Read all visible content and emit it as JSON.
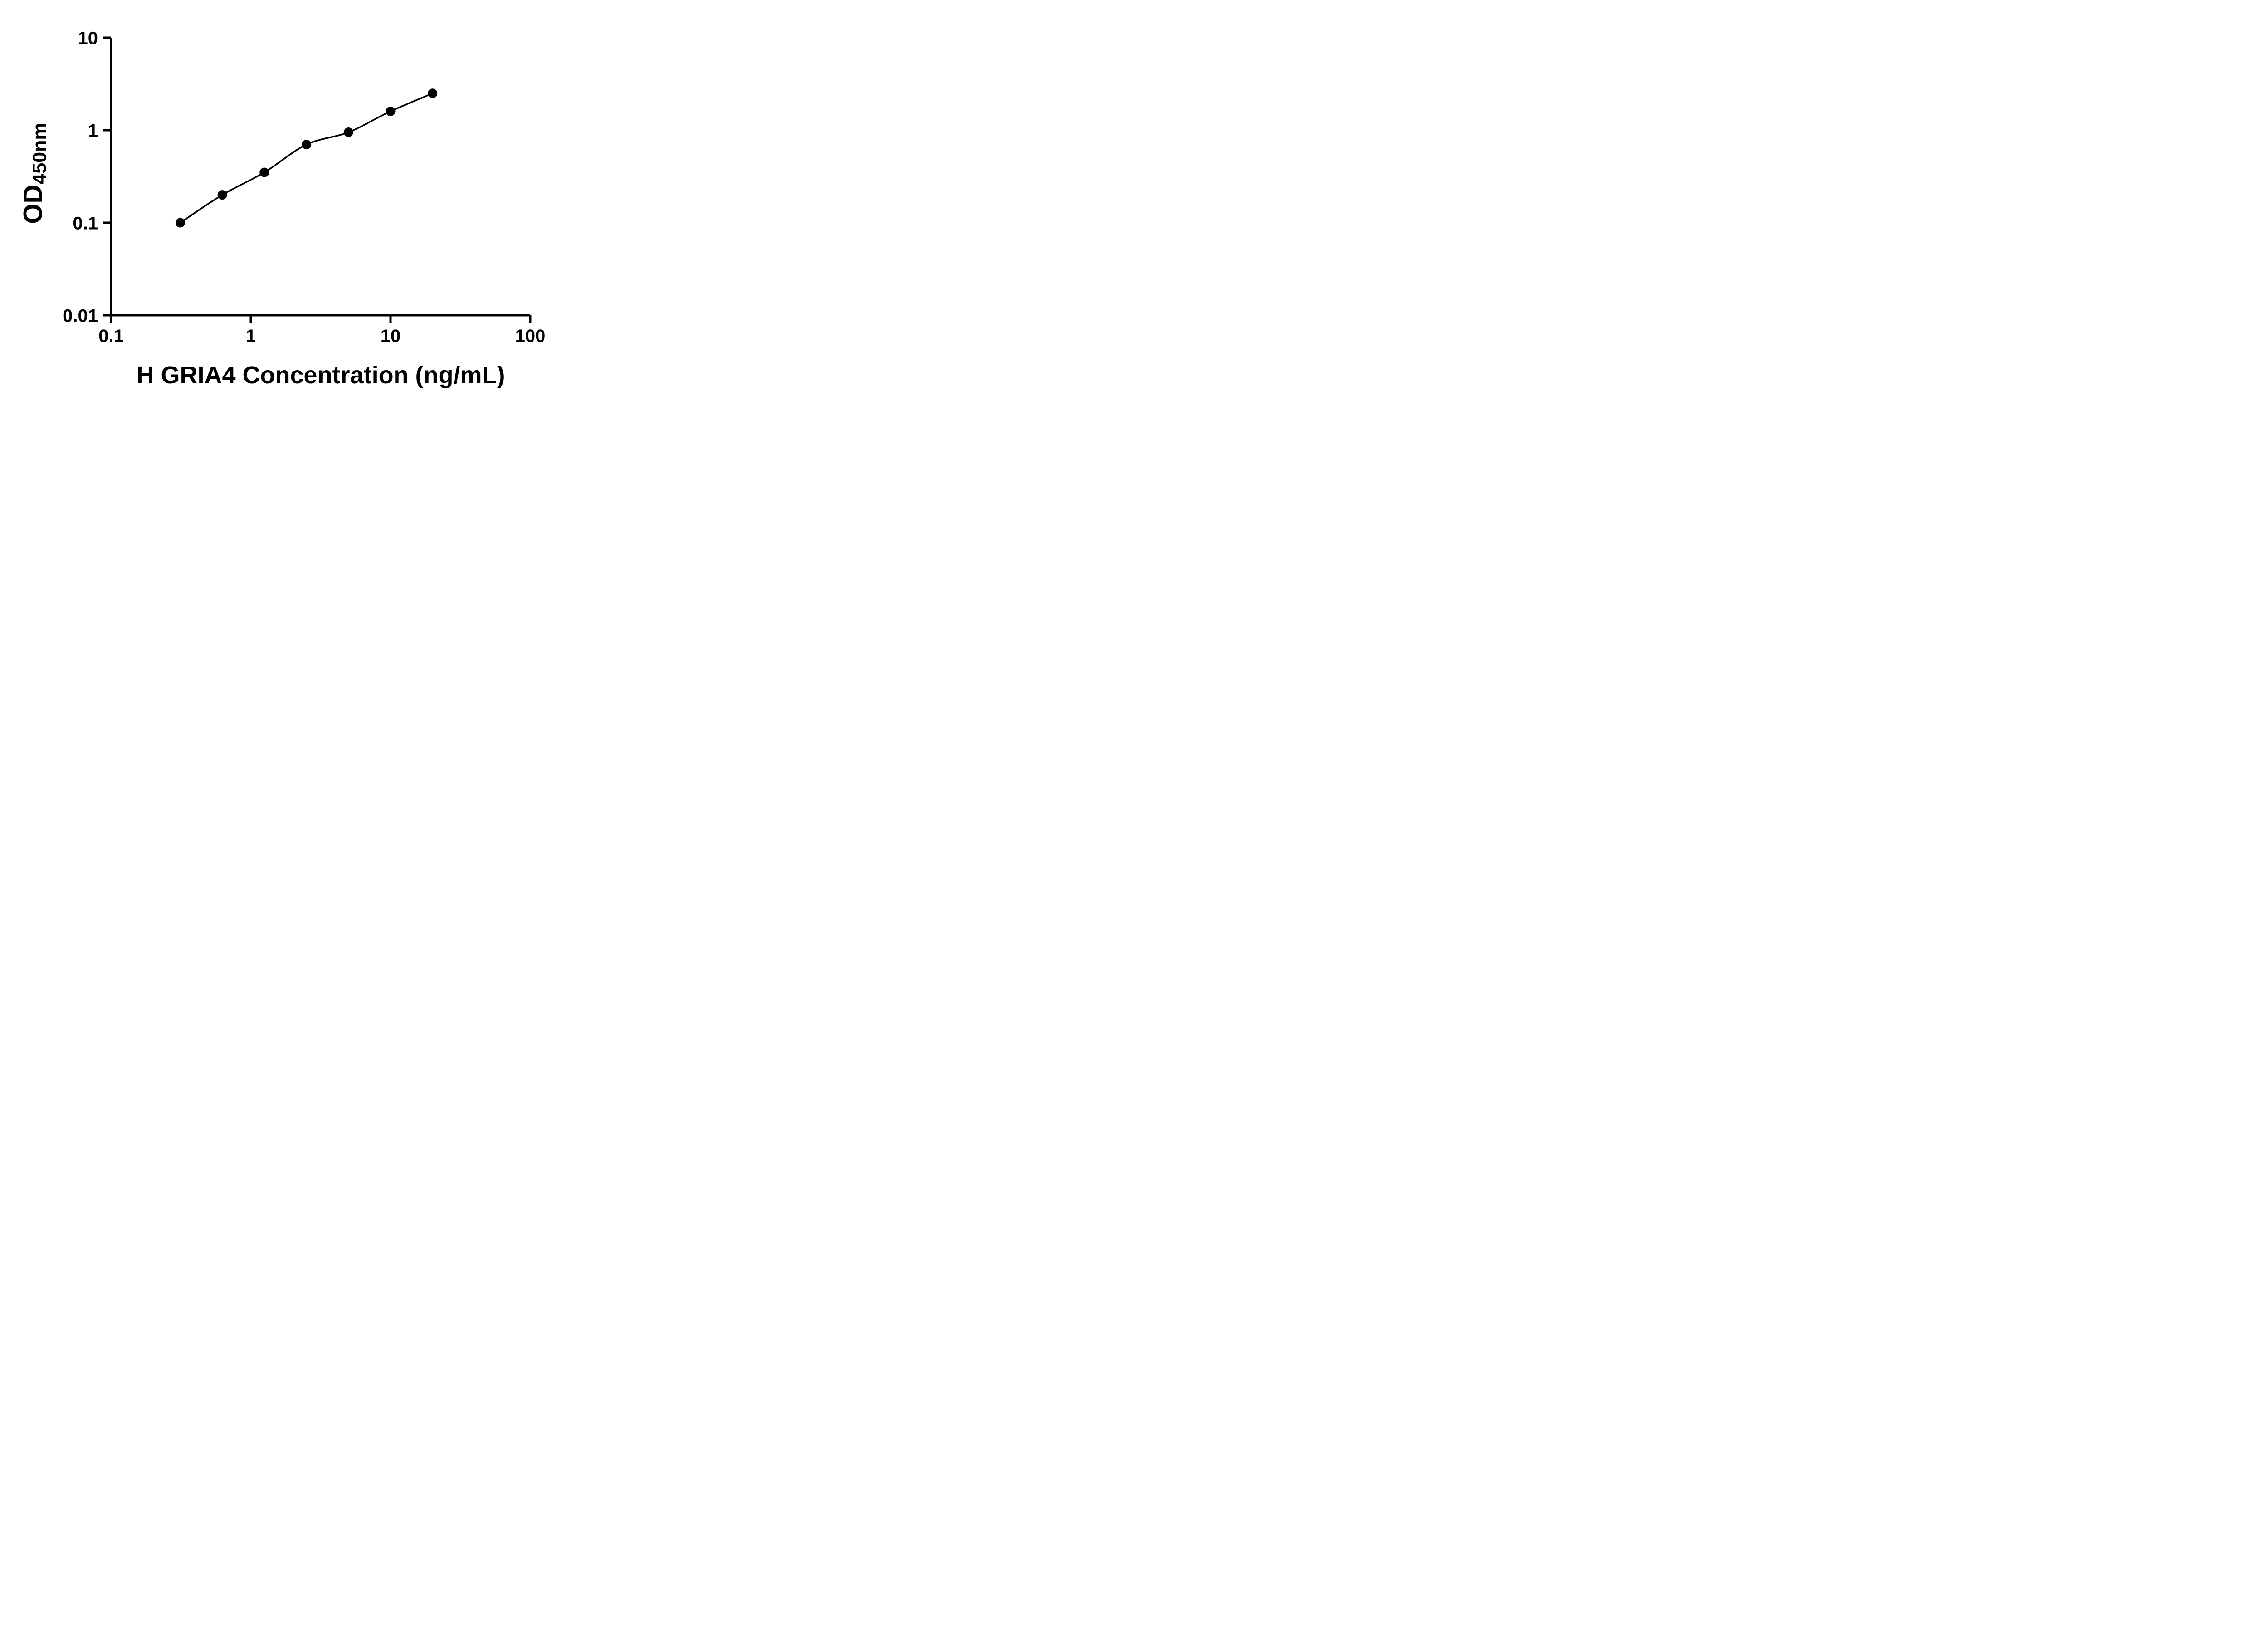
{
  "chart_data": {
    "type": "scatter",
    "title": "",
    "xlabel": "H GRIA4 Concentration (ng/mL)",
    "ylabel": "OD",
    "ylabel_sub": "450nm",
    "x_scale": "log10",
    "y_scale": "log10",
    "xlim": [
      0.1,
      100
    ],
    "ylim": [
      0.01,
      10
    ],
    "x_ticks": [
      0.1,
      1,
      10,
      100
    ],
    "x_tick_labels": [
      "0.1",
      "1",
      "10",
      "100"
    ],
    "y_ticks": [
      0.01,
      0.1,
      1,
      10
    ],
    "y_tick_labels": [
      "0.01",
      "0.1",
      "1",
      "10"
    ],
    "grid": false,
    "legend": false,
    "series": [
      {
        "x": [
          0.3125,
          0.625,
          1.25,
          2.5,
          5,
          10,
          20
        ],
        "y": [
          0.1,
          0.2,
          0.35,
          0.7,
          0.95,
          1.6,
          2.5
        ],
        "marker": "circle",
        "line": "smooth-fit",
        "color": "#000000"
      }
    ]
  },
  "colors": {
    "background": "#ffffff",
    "axis": "#000000",
    "text": "#000000"
  }
}
